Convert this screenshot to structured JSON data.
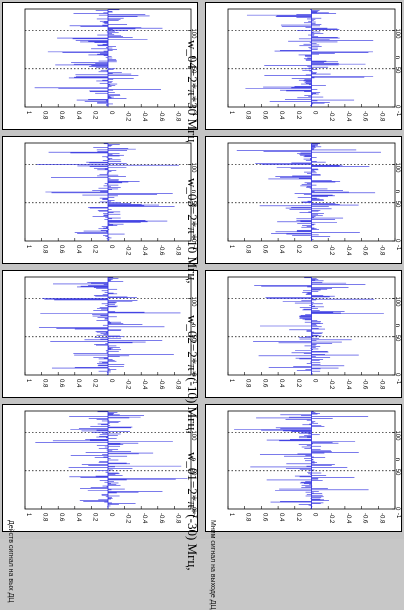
{
  "titles": {
    "col1": "w_01=2*π*(-30) Мгц,",
    "col2": "w_02=2*π*(-10) Мгц,",
    "col3": "w_03=2*π*10 Мгц,",
    "col4": "w_04=2*π*30 Мгц"
  },
  "side_labels": {
    "top_row": "Действ сигнал на вых ДЦ",
    "bottom_row": "Мним сигнал на выходе ДЦ"
  },
  "colors": {
    "stem": "#2a2adf",
    "axis": "#000000",
    "grid": "#000000"
  },
  "chart_data": [
    {
      "type": "stem",
      "id": "re-30",
      "xlabel": "n",
      "xlim": [
        0,
        128
      ],
      "ylim": [
        -1,
        1
      ],
      "yticks": [
        1,
        0.8,
        0.6,
        0.4,
        0.2,
        0,
        -0.2,
        -0.4,
        -0.6,
        -0.8,
        -1
      ],
      "xticks": [
        0,
        50,
        100
      ],
      "tick_labels_y": [
        "1",
        "0.8",
        "0.6",
        "0.4",
        "0.2",
        "0",
        "-0.2",
        "-0.4",
        "-0.6",
        "-0.8",
        "-1"
      ],
      "tick_labels_x": [
        "0",
        "50",
        "100"
      ],
      "period": 16.0,
      "seed": 1
    },
    {
      "type": "stem",
      "id": "re-10",
      "xlabel": "n",
      "xlim": [
        0,
        128
      ],
      "ylim": [
        -1,
        1
      ],
      "yticks": [
        1,
        0.8,
        0.6,
        0.4,
        0.2,
        0,
        -0.2,
        -0.4,
        -0.6,
        -0.8,
        -1
      ],
      "xticks": [
        0,
        50,
        100
      ],
      "tick_labels_y": [
        "1",
        "0.8",
        "0.6",
        "0.4",
        "0.2",
        "0",
        "-0.2",
        "-0.4",
        "-0.6",
        "-0.8",
        "-1"
      ],
      "tick_labels_x": [
        "0",
        "50",
        "100"
      ],
      "period": 18.0,
      "seed": 2
    },
    {
      "type": "stem",
      "id": "re10",
      "xlabel": "n",
      "xlim": [
        0,
        128
      ],
      "ylim": [
        -1,
        1
      ],
      "yticks": [
        1,
        0.8,
        0.6,
        0.4,
        0.2,
        0,
        -0.2,
        -0.4,
        -0.6,
        -0.8,
        -1
      ],
      "xticks": [
        0,
        50,
        100
      ],
      "tick_labels_y": [
        "1",
        "0.8",
        "0.6",
        "0.4",
        "0.2",
        "0",
        "-0.2",
        "-0.4",
        "-0.6",
        "-0.8",
        "-1"
      ],
      "tick_labels_x": [
        "0",
        "50",
        "100"
      ],
      "period": 18.0,
      "seed": 3
    },
    {
      "type": "stem",
      "id": "re30",
      "xlabel": "n",
      "xlim": [
        0,
        128
      ],
      "ylim": [
        -1,
        1
      ],
      "yticks": [
        1,
        0.8,
        0.6,
        0.4,
        0.2,
        0,
        -0.2,
        -0.4,
        -0.6,
        -0.8,
        -1
      ],
      "xticks": [
        0,
        50,
        100
      ],
      "tick_labels_y": [
        "1",
        "0.8",
        "0.6",
        "0.4",
        "0.2",
        "0",
        "-0.2",
        "-0.4",
        "-0.6",
        "-0.8",
        "-1"
      ],
      "tick_labels_x": [
        "0",
        "50",
        "100"
      ],
      "period": 16.0,
      "seed": 4
    },
    {
      "type": "stem",
      "id": "im-30",
      "xlabel": "n",
      "xlim": [
        0,
        128
      ],
      "ylim": [
        -1,
        1
      ],
      "yticks": [
        1,
        0.8,
        0.6,
        0.4,
        0.2,
        0,
        -0.2,
        -0.4,
        -0.6,
        -0.8,
        -1
      ],
      "xticks": [
        0,
        50,
        100
      ],
      "tick_labels_y": [
        "1",
        "0.8",
        "0.6",
        "0.4",
        "0.2",
        "0",
        "-0.2",
        "-0.4",
        "-0.6",
        "-0.8",
        "-1"
      ],
      "tick_labels_x": [
        "0",
        "50",
        "100"
      ],
      "period": 16.0,
      "seed": 5
    },
    {
      "type": "stem",
      "id": "im-10",
      "xlabel": "n",
      "xlim": [
        0,
        128
      ],
      "ylim": [
        -1,
        1
      ],
      "yticks": [
        1,
        0.8,
        0.6,
        0.4,
        0.2,
        0,
        -0.2,
        -0.4,
        -0.6,
        -0.8,
        -1
      ],
      "xticks": [
        0,
        50,
        100
      ],
      "tick_labels_y": [
        "1",
        "0.8",
        "0.6",
        "0.4",
        "0.2",
        "0",
        "-0.2",
        "-0.4",
        "-0.6",
        "-0.8",
        "-1"
      ],
      "tick_labels_x": [
        "0",
        "50",
        "100"
      ],
      "period": 18.0,
      "seed": 6
    },
    {
      "type": "stem",
      "id": "im10",
      "xlabel": "n",
      "xlim": [
        0,
        128
      ],
      "ylim": [
        -1,
        1
      ],
      "yticks": [
        1,
        0.8,
        0.6,
        0.4,
        0.2,
        0,
        -0.2,
        -0.4,
        -0.6,
        -0.8,
        -1
      ],
      "xticks": [
        0,
        50,
        100
      ],
      "tick_labels_y": [
        "1",
        "0.8",
        "0.6",
        "0.4",
        "0.2",
        "0",
        "-0.2",
        "-0.4",
        "-0.6",
        "-0.8",
        "-1"
      ],
      "tick_labels_x": [
        "0",
        "50",
        "100"
      ],
      "period": 18.0,
      "seed": 7
    },
    {
      "type": "stem",
      "id": "im30",
      "xlabel": "n",
      "xlim": [
        0,
        128
      ],
      "ylim": [
        -1,
        1
      ],
      "yticks": [
        1,
        0.8,
        0.6,
        0.4,
        0.2,
        0,
        -0.2,
        -0.4,
        -0.6,
        -0.8,
        -1
      ],
      "xticks": [
        0,
        50,
        100
      ],
      "tick_labels_y": [
        "1",
        "0.8",
        "0.6",
        "0.4",
        "0.2",
        "0",
        "-0.2",
        "-0.4",
        "-0.6",
        "-0.8",
        "-1"
      ],
      "tick_labels_x": [
        "0",
        "50",
        "100"
      ],
      "period": 16.0,
      "seed": 8
    }
  ]
}
